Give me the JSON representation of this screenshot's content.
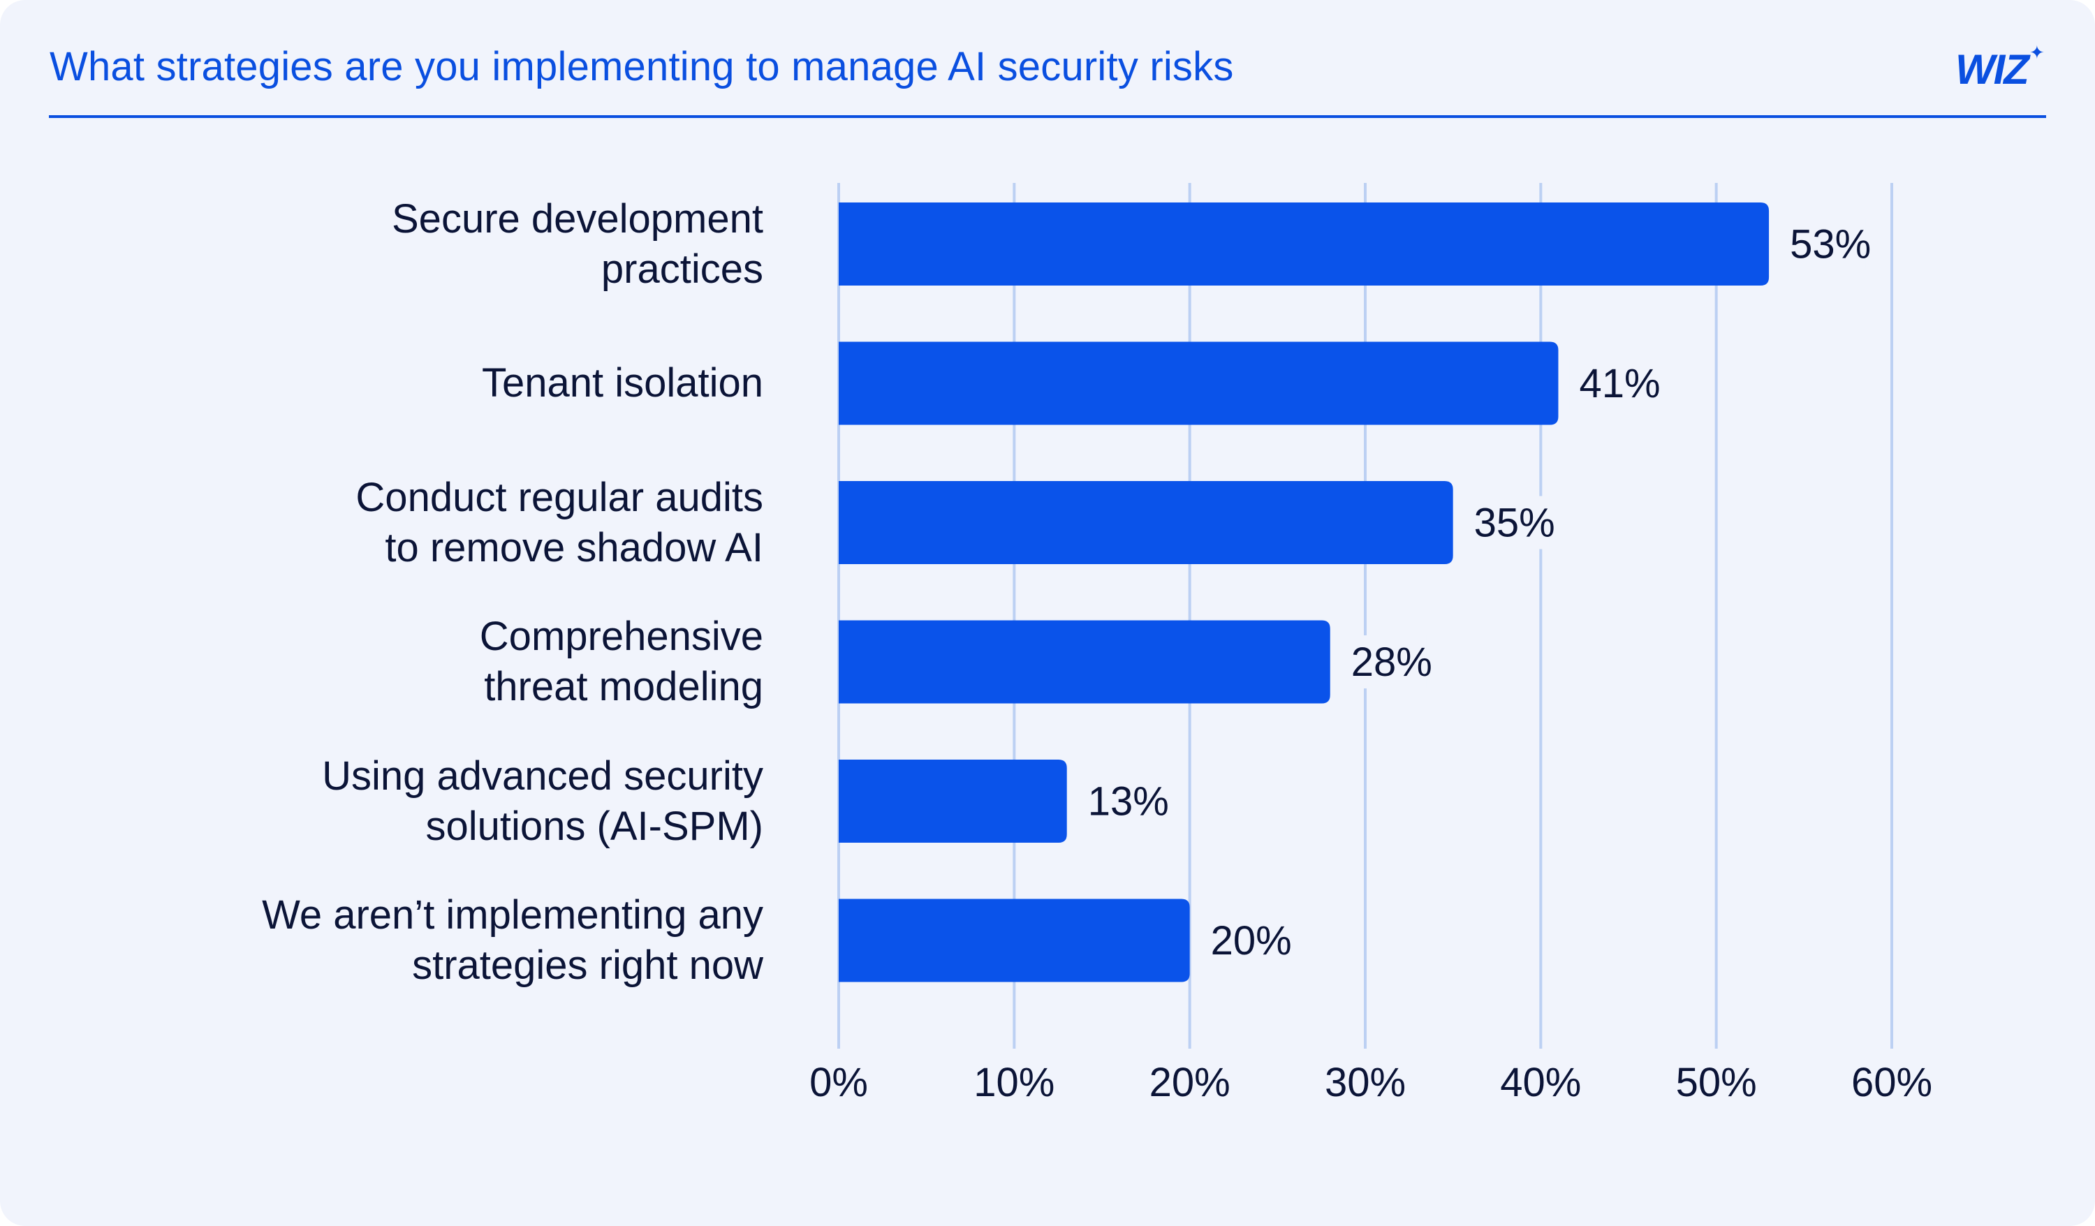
{
  "header": {
    "title": "What strategies are you implementing to manage AI security risks",
    "logo_text": "WIZ",
    "logo_star": "✦"
  },
  "colors": {
    "bar": "#0a53ea",
    "accent": "#0a4fe0",
    "grid": "#bcd0f3",
    "text": "#0b1437",
    "background": "#f1f4fc"
  },
  "chart_data": {
    "type": "bar",
    "orientation": "horizontal",
    "title": "What strategies are you implementing to manage AI security risks",
    "categories": [
      [
        "Secure development",
        "practices"
      ],
      [
        "Tenant isolation"
      ],
      [
        "Conduct regular audits",
        "to remove shadow AI"
      ],
      [
        "Comprehensive",
        "threat modeling"
      ],
      [
        "Using advanced security",
        "solutions (AI-SPM)"
      ],
      [
        "We aren’t implementing any",
        "strategies right now"
      ]
    ],
    "values": [
      53,
      41,
      35,
      28,
      13,
      20
    ],
    "value_labels": [
      "53%",
      "41%",
      "35%",
      "28%",
      "13%",
      "20%"
    ],
    "xlim": [
      0,
      60
    ],
    "xticks": [
      0,
      10,
      20,
      30,
      40,
      50,
      60
    ],
    "xtick_labels": [
      "0%",
      "10%",
      "20%",
      "30%",
      "40%",
      "50%",
      "60%"
    ],
    "grid": "vertical",
    "legend": "none"
  }
}
